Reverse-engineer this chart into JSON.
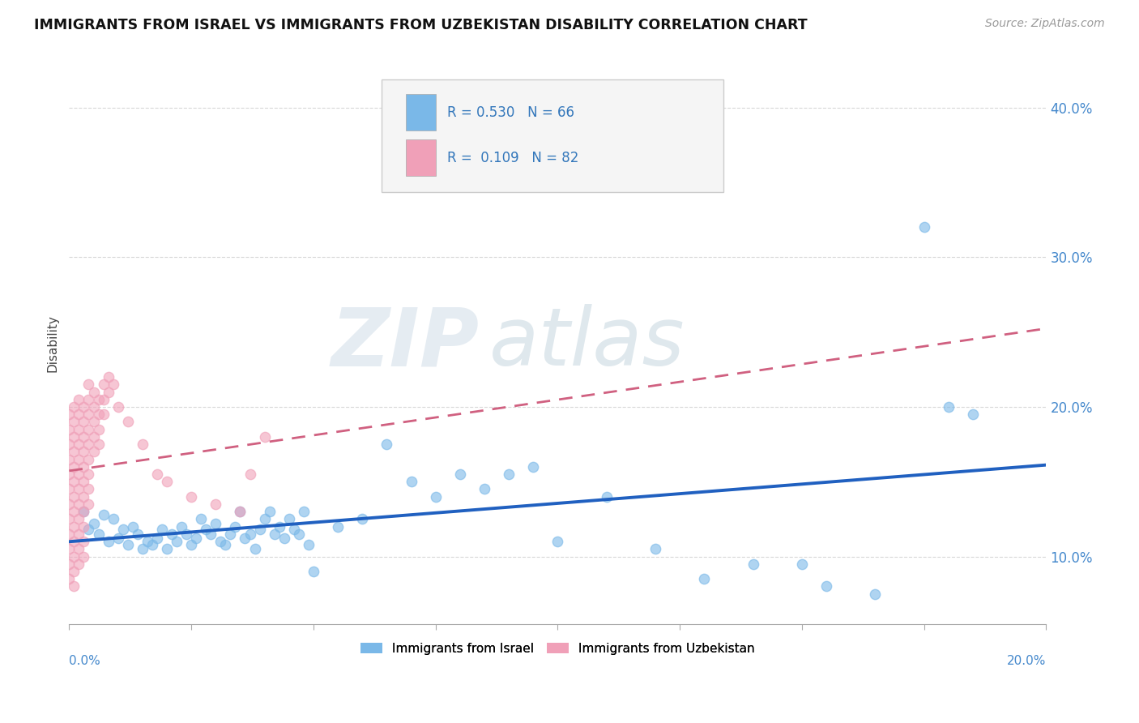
{
  "title": "IMMIGRANTS FROM ISRAEL VS IMMIGRANTS FROM UZBEKISTAN DISABILITY CORRELATION CHART",
  "source": "Source: ZipAtlas.com",
  "ylabel": "Disability",
  "xlim": [
    0.0,
    0.2
  ],
  "ylim": [
    0.055,
    0.43
  ],
  "yticks": [
    0.1,
    0.2,
    0.3,
    0.4
  ],
  "ytick_labels": [
    "10.0%",
    "20.0%",
    "30.0%",
    "40.0%"
  ],
  "israel_color": "#7ab8e8",
  "uzbekistan_color": "#f0a0b8",
  "trend_israel_color": "#2060c0",
  "trend_uzbekistan_color": "#d06080",
  "watermark_zip": "ZIP",
  "watermark_atlas": "atlas",
  "background_color": "#ffffff",
  "grid_color": "#d8d8d8",
  "israel_scatter": [
    [
      0.003,
      0.13
    ],
    [
      0.004,
      0.118
    ],
    [
      0.005,
      0.122
    ],
    [
      0.006,
      0.115
    ],
    [
      0.007,
      0.128
    ],
    [
      0.008,
      0.11
    ],
    [
      0.009,
      0.125
    ],
    [
      0.01,
      0.112
    ],
    [
      0.011,
      0.118
    ],
    [
      0.012,
      0.108
    ],
    [
      0.013,
      0.12
    ],
    [
      0.014,
      0.115
    ],
    [
      0.015,
      0.105
    ],
    [
      0.016,
      0.11
    ],
    [
      0.017,
      0.108
    ],
    [
      0.018,
      0.112
    ],
    [
      0.019,
      0.118
    ],
    [
      0.02,
      0.105
    ],
    [
      0.021,
      0.115
    ],
    [
      0.022,
      0.11
    ],
    [
      0.023,
      0.12
    ],
    [
      0.024,
      0.115
    ],
    [
      0.025,
      0.108
    ],
    [
      0.026,
      0.112
    ],
    [
      0.027,
      0.125
    ],
    [
      0.028,
      0.118
    ],
    [
      0.029,
      0.115
    ],
    [
      0.03,
      0.122
    ],
    [
      0.031,
      0.11
    ],
    [
      0.032,
      0.108
    ],
    [
      0.033,
      0.115
    ],
    [
      0.034,
      0.12
    ],
    [
      0.035,
      0.13
    ],
    [
      0.036,
      0.112
    ],
    [
      0.037,
      0.115
    ],
    [
      0.038,
      0.105
    ],
    [
      0.039,
      0.118
    ],
    [
      0.04,
      0.125
    ],
    [
      0.041,
      0.13
    ],
    [
      0.042,
      0.115
    ],
    [
      0.043,
      0.12
    ],
    [
      0.044,
      0.112
    ],
    [
      0.045,
      0.125
    ],
    [
      0.046,
      0.118
    ],
    [
      0.047,
      0.115
    ],
    [
      0.048,
      0.13
    ],
    [
      0.049,
      0.108
    ],
    [
      0.05,
      0.09
    ],
    [
      0.055,
      0.12
    ],
    [
      0.06,
      0.125
    ],
    [
      0.065,
      0.175
    ],
    [
      0.07,
      0.15
    ],
    [
      0.075,
      0.14
    ],
    [
      0.08,
      0.155
    ],
    [
      0.085,
      0.145
    ],
    [
      0.09,
      0.155
    ],
    [
      0.095,
      0.16
    ],
    [
      0.1,
      0.11
    ],
    [
      0.11,
      0.14
    ],
    [
      0.12,
      0.105
    ],
    [
      0.13,
      0.085
    ],
    [
      0.14,
      0.095
    ],
    [
      0.15,
      0.095
    ],
    [
      0.155,
      0.08
    ],
    [
      0.165,
      0.075
    ],
    [
      0.175,
      0.32
    ],
    [
      0.18,
      0.2
    ],
    [
      0.185,
      0.195
    ]
  ],
  "uzbekistan_scatter": [
    [
      0.0,
      0.195
    ],
    [
      0.0,
      0.185
    ],
    [
      0.0,
      0.175
    ],
    [
      0.0,
      0.165
    ],
    [
      0.0,
      0.155
    ],
    [
      0.0,
      0.145
    ],
    [
      0.0,
      0.135
    ],
    [
      0.0,
      0.125
    ],
    [
      0.0,
      0.115
    ],
    [
      0.0,
      0.105
    ],
    [
      0.0,
      0.095
    ],
    [
      0.0,
      0.085
    ],
    [
      0.001,
      0.2
    ],
    [
      0.001,
      0.19
    ],
    [
      0.001,
      0.18
    ],
    [
      0.001,
      0.17
    ],
    [
      0.001,
      0.16
    ],
    [
      0.001,
      0.15
    ],
    [
      0.001,
      0.14
    ],
    [
      0.001,
      0.13
    ],
    [
      0.001,
      0.12
    ],
    [
      0.001,
      0.11
    ],
    [
      0.001,
      0.1
    ],
    [
      0.001,
      0.09
    ],
    [
      0.001,
      0.08
    ],
    [
      0.002,
      0.205
    ],
    [
      0.002,
      0.195
    ],
    [
      0.002,
      0.185
    ],
    [
      0.002,
      0.175
    ],
    [
      0.002,
      0.165
    ],
    [
      0.002,
      0.155
    ],
    [
      0.002,
      0.145
    ],
    [
      0.002,
      0.135
    ],
    [
      0.002,
      0.125
    ],
    [
      0.002,
      0.115
    ],
    [
      0.002,
      0.105
    ],
    [
      0.002,
      0.095
    ],
    [
      0.003,
      0.2
    ],
    [
      0.003,
      0.19
    ],
    [
      0.003,
      0.18
    ],
    [
      0.003,
      0.17
    ],
    [
      0.003,
      0.16
    ],
    [
      0.003,
      0.15
    ],
    [
      0.003,
      0.14
    ],
    [
      0.003,
      0.13
    ],
    [
      0.003,
      0.12
    ],
    [
      0.003,
      0.11
    ],
    [
      0.003,
      0.1
    ],
    [
      0.004,
      0.215
    ],
    [
      0.004,
      0.205
    ],
    [
      0.004,
      0.195
    ],
    [
      0.004,
      0.185
    ],
    [
      0.004,
      0.175
    ],
    [
      0.004,
      0.165
    ],
    [
      0.004,
      0.155
    ],
    [
      0.004,
      0.145
    ],
    [
      0.004,
      0.135
    ],
    [
      0.005,
      0.21
    ],
    [
      0.005,
      0.2
    ],
    [
      0.005,
      0.19
    ],
    [
      0.005,
      0.18
    ],
    [
      0.005,
      0.17
    ],
    [
      0.006,
      0.205
    ],
    [
      0.006,
      0.195
    ],
    [
      0.006,
      0.185
    ],
    [
      0.006,
      0.175
    ],
    [
      0.007,
      0.215
    ],
    [
      0.007,
      0.205
    ],
    [
      0.007,
      0.195
    ],
    [
      0.008,
      0.22
    ],
    [
      0.008,
      0.21
    ],
    [
      0.009,
      0.215
    ],
    [
      0.01,
      0.2
    ],
    [
      0.012,
      0.19
    ],
    [
      0.015,
      0.175
    ],
    [
      0.018,
      0.155
    ],
    [
      0.02,
      0.15
    ],
    [
      0.025,
      0.14
    ],
    [
      0.03,
      0.135
    ],
    [
      0.035,
      0.13
    ],
    [
      0.037,
      0.155
    ],
    [
      0.04,
      0.18
    ]
  ]
}
